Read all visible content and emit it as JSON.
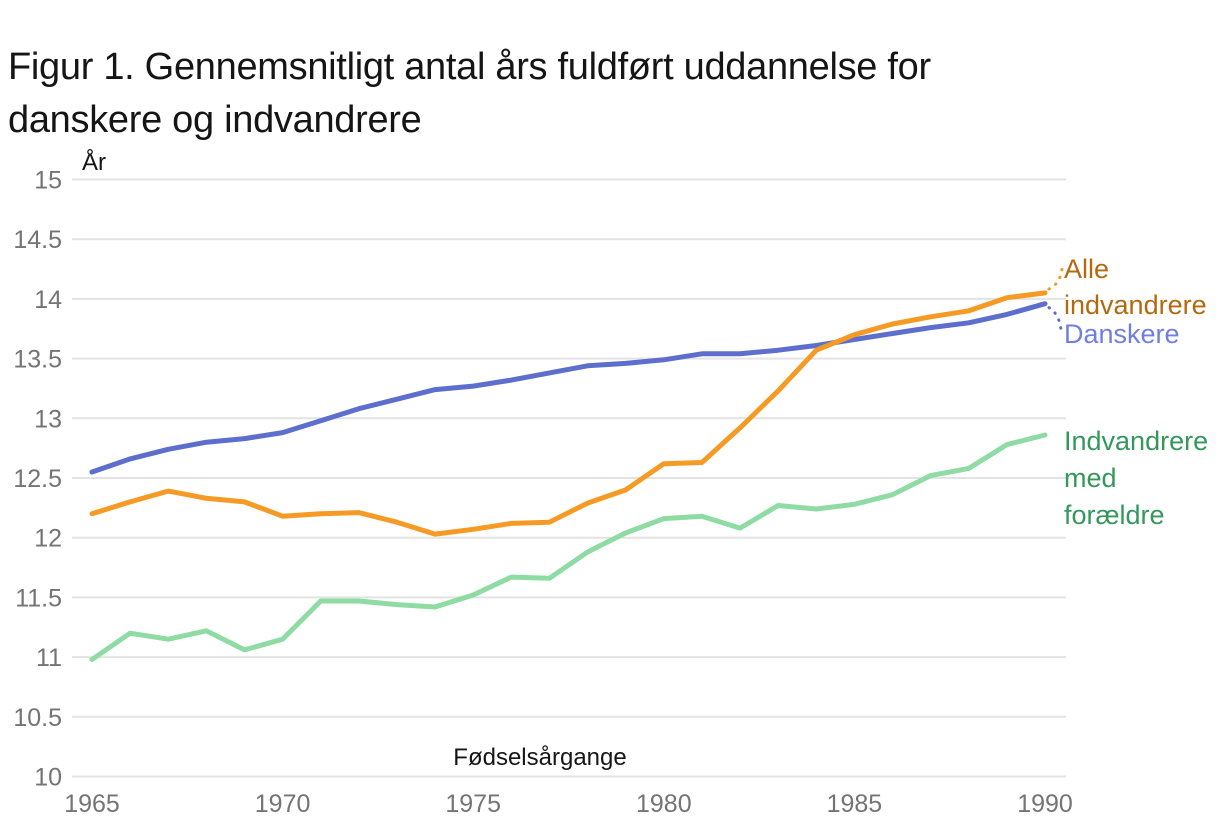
{
  "title": "Figur 1. Gennemsnitligt antal års fuldført uddannelse for danskere og indvandrere",
  "y_axis_unit": "År",
  "x_axis_label": "Fødselsårgange",
  "style": {
    "background": "#ffffff",
    "grid_color": "#e3e3e3",
    "tick_color": "#747474",
    "text_color": "#161616"
  },
  "chart_data": {
    "type": "line",
    "title": "Figur 1. Gennemsnitligt antal års fuldført uddannelse for danskere og indvandrere",
    "xlabel": "Fødselsårgange",
    "ylabel": "År",
    "ylim": [
      10,
      15
    ],
    "xlim": [
      1965,
      1990
    ],
    "grid": true,
    "legend_position": "right-edge-direct-labels",
    "y_tick_labels": [
      "15",
      "14.5",
      "14",
      "13.5",
      "13",
      "12.5",
      "12",
      "11.5",
      "11",
      "10.5",
      "10"
    ],
    "x_tick_labels": [
      "1965",
      "1970",
      "1975",
      "1980",
      "1985",
      "1990"
    ],
    "x": [
      1965,
      1966,
      1967,
      1968,
      1969,
      1970,
      1971,
      1972,
      1973,
      1974,
      1975,
      1976,
      1977,
      1978,
      1979,
      1980,
      1981,
      1982,
      1983,
      1984,
      1985,
      1986,
      1987,
      1988,
      1989,
      1990
    ],
    "series": [
      {
        "name": "Danskere",
        "line_color": "#5d6ecd",
        "label_color": "#6f7fe0",
        "values": [
          12.55,
          12.66,
          12.74,
          12.8,
          12.83,
          12.88,
          12.98,
          13.08,
          13.16,
          13.24,
          13.27,
          13.32,
          13.38,
          13.44,
          13.46,
          13.49,
          13.54,
          13.54,
          13.57,
          13.61,
          13.66,
          13.71,
          13.76,
          13.8,
          13.87,
          13.96
        ]
      },
      {
        "name": "Indvandrere med forældre",
        "line_color": "#8edba3",
        "label_color": "#34985c",
        "values": [
          10.98,
          11.2,
          11.15,
          11.22,
          11.06,
          11.15,
          11.47,
          11.47,
          11.44,
          11.42,
          11.52,
          11.67,
          11.66,
          11.88,
          12.04,
          12.16,
          12.18,
          12.08,
          12.27,
          12.24,
          12.28,
          12.36,
          12.52,
          12.58,
          12.78,
          12.86
        ]
      },
      {
        "name": "Alle indvandrere",
        "line_color": "#f59b25",
        "label_color": "#b5690f",
        "values": [
          12.2,
          12.3,
          12.39,
          12.33,
          12.3,
          12.18,
          12.2,
          12.21,
          12.13,
          12.03,
          12.07,
          12.12,
          12.13,
          12.29,
          12.4,
          12.62,
          12.63,
          12.92,
          13.23,
          13.57,
          13.7,
          13.79,
          13.85,
          13.9,
          14.01,
          14.05
        ]
      }
    ]
  }
}
